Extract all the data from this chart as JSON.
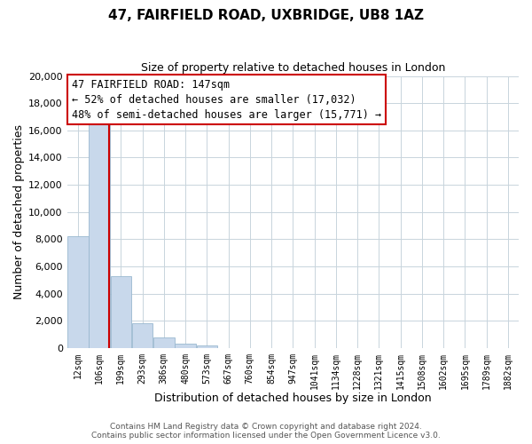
{
  "title": "47, FAIRFIELD ROAD, UXBRIDGE, UB8 1AZ",
  "subtitle": "Size of property relative to detached houses in London",
  "xlabel": "Distribution of detached houses by size in London",
  "ylabel": "Number of detached properties",
  "bar_color": "#c8d8eb",
  "bar_edge_color": "#9ab8d0",
  "background_color": "#dce8f0",
  "categories": [
    "12sqm",
    "106sqm",
    "199sqm",
    "293sqm",
    "386sqm",
    "480sqm",
    "573sqm",
    "667sqm",
    "760sqm",
    "854sqm",
    "947sqm",
    "1041sqm",
    "1134sqm",
    "1228sqm",
    "1321sqm",
    "1415sqm",
    "1508sqm",
    "1602sqm",
    "1695sqm",
    "1789sqm",
    "1882sqm"
  ],
  "values": [
    8200,
    16600,
    5300,
    1800,
    750,
    300,
    180,
    0,
    0,
    0,
    0,
    0,
    0,
    0,
    0,
    0,
    0,
    0,
    0,
    0,
    0
  ],
  "ylim": [
    0,
    20000
  ],
  "yticks": [
    0,
    2000,
    4000,
    6000,
    8000,
    10000,
    12000,
    14000,
    16000,
    18000,
    20000
  ],
  "annotation_line1": "47 FAIRFIELD ROAD: 147sqm",
  "annotation_line2": "← 52% of detached houses are smaller (17,032)",
  "annotation_line3": "48% of semi-detached houses are larger (15,771) →",
  "footer_line1": "Contains HM Land Registry data © Crown copyright and database right 2024.",
  "footer_line2": "Contains public sector information licensed under the Open Government Licence v3.0.",
  "grid_color": "#c8d4dc",
  "annotation_box_color": "#ffffff",
  "annotation_box_edge_color": "#cc0000",
  "property_line_color": "#cc0000"
}
